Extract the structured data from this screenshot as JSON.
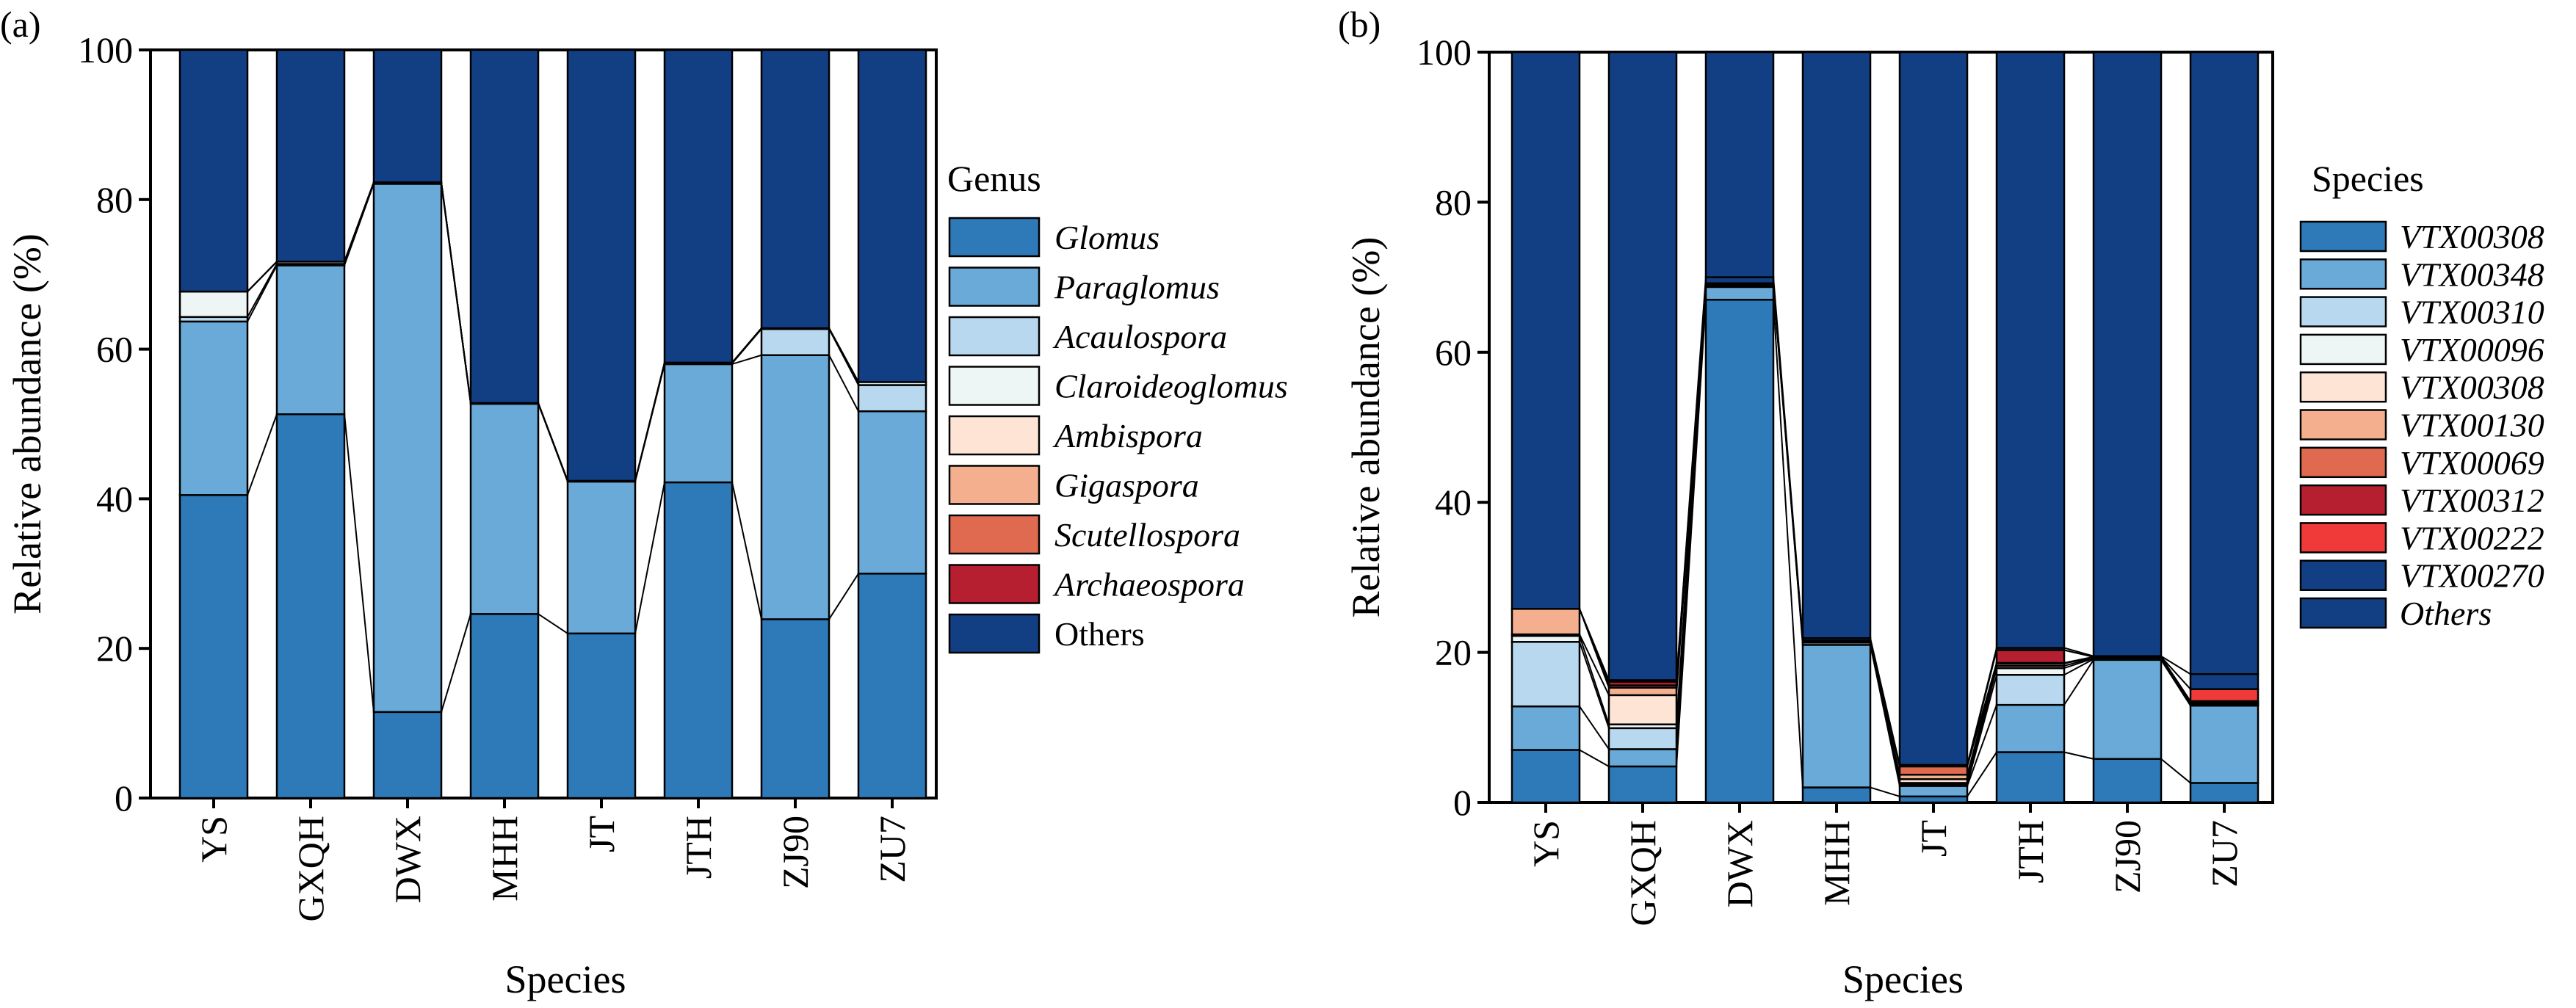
{
  "panels": [
    {
      "label": "(a)",
      "legend_title": "Genus"
    },
    {
      "label": "(b)",
      "legend_title": "Species"
    }
  ],
  "chart_data": [
    {
      "type": "bar",
      "stacked": true,
      "panel_label": "(a)",
      "title": "",
      "xlabel": "Species",
      "ylabel": "Relative abundance (%)",
      "ylim": [
        0,
        100
      ],
      "yticks": [
        0,
        20,
        40,
        60,
        80,
        100
      ],
      "legend_title": "Genus",
      "legend_position": "right",
      "connecting_lines": true,
      "categories": [
        "YS",
        "GXQH",
        "DWX",
        "MHH",
        "JT",
        "JTH",
        "ZJ90",
        "ZU7"
      ],
      "series": [
        {
          "name": "Glomus",
          "italic": true,
          "color": "#2e7ab8",
          "values": [
            40.5,
            51.3,
            11.5,
            24.6,
            22.0,
            42.2,
            23.9,
            30.0
          ]
        },
        {
          "name": "Paraglomus",
          "italic": true,
          "color": "#6aaad8",
          "values": [
            23.2,
            19.9,
            70.6,
            28.1,
            20.3,
            15.8,
            35.3,
            21.7
          ]
        },
        {
          "name": "Acaulospora",
          "italic": true,
          "color": "#b8d8f0",
          "values": [
            0.6,
            0.2,
            0.1,
            0.1,
            0.1,
            0.1,
            3.5,
            3.5
          ]
        },
        {
          "name": "Claroideoglomus",
          "italic": true,
          "color": "#edf6f4",
          "values": [
            3.4,
            0.3,
            0.1,
            0.0,
            0.0,
            0.1,
            0.1,
            0.4
          ]
        },
        {
          "name": "Ambispora",
          "italic": true,
          "color": "#fde4d4",
          "values": [
            0.0,
            0.0,
            0.0,
            0.0,
            0.0,
            0.0,
            0.0,
            0.0
          ]
        },
        {
          "name": "Gigaspora",
          "italic": true,
          "color": "#f4b08e",
          "values": [
            0.0,
            0.0,
            0.0,
            0.0,
            0.0,
            0.0,
            0.0,
            0.0
          ]
        },
        {
          "name": "Scutellospora",
          "italic": true,
          "color": "#e06a50",
          "values": [
            0.0,
            0.0,
            0.0,
            0.0,
            0.0,
            0.0,
            0.0,
            0.0
          ]
        },
        {
          "name": "Archaeospora",
          "italic": true,
          "color": "#b51f30",
          "values": [
            0.0,
            0.0,
            0.0,
            0.0,
            0.0,
            0.0,
            0.0,
            0.0
          ]
        },
        {
          "name": "Others",
          "italic": false,
          "color": "#123f83",
          "values": [
            32.3,
            28.3,
            17.7,
            47.2,
            57.6,
            41.8,
            37.2,
            44.4
          ]
        }
      ]
    },
    {
      "type": "bar",
      "stacked": true,
      "panel_label": "(b)",
      "title": "",
      "xlabel": "Species",
      "ylabel": "Relative abundance (%)",
      "ylim": [
        0,
        100
      ],
      "yticks": [
        0,
        20,
        40,
        60,
        80,
        100
      ],
      "legend_title": "Species",
      "legend_position": "right",
      "connecting_lines": true,
      "categories": [
        "YS",
        "GXQH",
        "DWX",
        "MHH",
        "JT",
        "JTH",
        "ZJ90",
        "ZU7"
      ],
      "series": [
        {
          "name": "VTX00308",
          "italic": true,
          "color": "#2e7ab8",
          "values": [
            7.0,
            4.8,
            67.0,
            2.0,
            0.8,
            6.7,
            5.8,
            2.6
          ]
        },
        {
          "name": "VTX00348",
          "italic": true,
          "color": "#6aaad8",
          "values": [
            5.8,
            2.3,
            1.7,
            19.0,
            1.4,
            6.3,
            13.2,
            10.3
          ]
        },
        {
          "name": "VTX00310",
          "italic": true,
          "color": "#b8d8f0",
          "values": [
            8.6,
            2.8,
            0.2,
            0.3,
            0.2,
            4.0,
            0.1,
            0.1
          ]
        },
        {
          "name": "VTX00096",
          "italic": true,
          "color": "#edf6f4",
          "values": [
            0.8,
            0.5,
            0.1,
            0.1,
            0.2,
            0.9,
            0.1,
            0.1
          ]
        },
        {
          "name": "VTX00308",
          "italic": true,
          "color": "#fde4d4",
          "values": [
            0.2,
            3.9,
            0.1,
            0.1,
            0.5,
            0.3,
            0.1,
            0.1
          ]
        },
        {
          "name": "VTX00130",
          "italic": true,
          "color": "#f4b08e",
          "values": [
            3.4,
            1.0,
            0.1,
            0.1,
            0.6,
            0.3,
            0.1,
            0.1
          ]
        },
        {
          "name": "VTX00069",
          "italic": true,
          "color": "#e06a50",
          "values": [
            0.0,
            0.3,
            0.0,
            0.0,
            1.1,
            0.1,
            0.0,
            0.1
          ]
        },
        {
          "name": "VTX00312",
          "italic": true,
          "color": "#b51f30",
          "values": [
            0.0,
            0.5,
            0.0,
            0.0,
            0.0,
            1.7,
            0.0,
            0.1
          ]
        },
        {
          "name": "VTX00222",
          "italic": true,
          "color": "#f03a3a",
          "values": [
            0.0,
            0.0,
            0.0,
            0.0,
            0.0,
            0.0,
            0.0,
            1.6
          ]
        },
        {
          "name": "VTX00270",
          "italic": true,
          "color": "#123f83",
          "values": [
            0.0,
            0.2,
            0.8,
            0.3,
            0.2,
            0.3,
            0.1,
            2.0
          ]
        },
        {
          "name": "Others",
          "italic": true,
          "color": "#123f83",
          "values": [
            74.2,
            83.7,
            30.0,
            78.1,
            95.0,
            79.4,
            80.5,
            82.9
          ]
        }
      ]
    }
  ]
}
